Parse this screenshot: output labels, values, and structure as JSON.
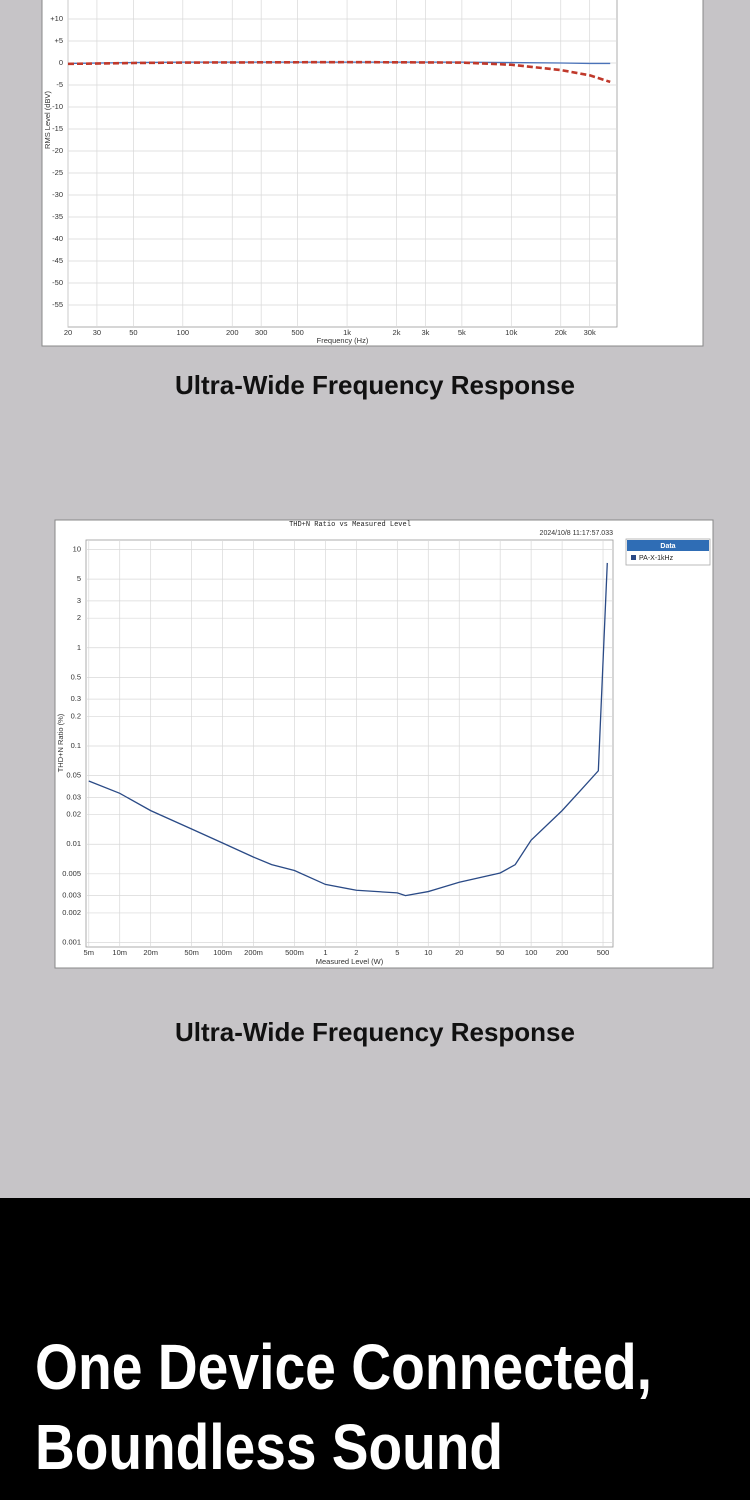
{
  "chart_data": [
    {
      "type": "line",
      "x_label": "Frequency (Hz)",
      "y_label": "RMS Level (dBV)",
      "xscale": "log",
      "grid": true,
      "x": [
        20,
        50,
        100,
        1000,
        5000,
        10000,
        20000,
        30000,
        40000
      ],
      "series": [
        {
          "color": "#4a72b8",
          "line_style": "solid",
          "values": [
            -0.1,
            0.1,
            0.2,
            0.2,
            0.2,
            0.1,
            0,
            -0.1,
            -0.1
          ]
        },
        {
          "color": "#c0392b",
          "line_style": "dashed",
          "values": [
            -0.2,
            0,
            0.1,
            0.2,
            0.1,
            -0.4,
            -1.6,
            -2.8,
            -4.3
          ]
        }
      ],
      "xlim": [
        20,
        44000
      ],
      "xticks": [
        20,
        30,
        50,
        100,
        200,
        300,
        500,
        {
          "value": 1000,
          "label": "1k"
        },
        {
          "value": 2000,
          "label": "2k"
        },
        {
          "value": 3000,
          "label": "3k"
        },
        {
          "value": 5000,
          "label": "5k"
        },
        {
          "value": 10000,
          "label": "10k"
        },
        {
          "value": 20000,
          "label": "20k"
        },
        {
          "value": 30000,
          "label": "30k"
        }
      ],
      "ylim": [
        -60,
        20
      ],
      "yticks": [
        {
          "value": 10,
          "label": "+10"
        },
        {
          "value": 5,
          "label": "+5"
        },
        0,
        -5,
        -10,
        -15,
        -20,
        -25,
        -30,
        -35,
        -40,
        -45,
        -50,
        -55
      ]
    },
    {
      "type": "line",
      "title": "THD+N Ratio vs Measured Level",
      "timestamp": "2024/10/8 11:17:57.033",
      "x_label": "Measured Level (W)",
      "y_label": "THD+N Ratio (%)",
      "xscale": "log",
      "yscale": "log",
      "grid": true,
      "legend": {
        "title": "Data",
        "position": "right"
      },
      "x": [
        0.005,
        0.01,
        0.02,
        0.05,
        0.1,
        0.2,
        0.3,
        0.5,
        1,
        2,
        5,
        6,
        10,
        20,
        50,
        70,
        100,
        200,
        300,
        450,
        550
      ],
      "series": [
        {
          "name": "PA-X-1kHz",
          "color": "#2a4a86",
          "line_style": "solid",
          "values": [
            0.044,
            0.033,
            0.022,
            0.0143,
            0.0103,
            0.0074,
            0.0062,
            0.0054,
            0.0039,
            0.0034,
            0.0032,
            0.003,
            0.0033,
            0.0041,
            0.0051,
            0.0062,
            0.011,
            0.022,
            0.035,
            0.056,
            7.3
          ]
        }
      ],
      "xlim": [
        0.0047,
        625
      ],
      "xticks": [
        {
          "value": 0.005,
          "label": "5m"
        },
        {
          "value": 0.01,
          "label": "10m"
        },
        {
          "value": 0.02,
          "label": "20m"
        },
        {
          "value": 0.05,
          "label": "50m"
        },
        {
          "value": 0.1,
          "label": "100m"
        },
        {
          "value": 0.2,
          "label": "200m"
        },
        {
          "value": 0.5,
          "label": "500m"
        },
        1,
        2,
        5,
        10,
        20,
        50,
        100,
        200,
        500
      ],
      "ylim": [
        0.0009,
        12.5
      ],
      "yticks": [
        10,
        5,
        3,
        2,
        1,
        0.5,
        0.3,
        0.2,
        0.1,
        0.05,
        0.03,
        0.02,
        0.01,
        0.005,
        0.003,
        0.002,
        0.001
      ]
    }
  ],
  "captions": [
    "Ultra-Wide Frequency Response",
    "Ultra-Wide Frequency Response"
  ],
  "banner": {
    "lines": [
      "One Device Connected,",
      "Boundless Sound"
    ]
  }
}
